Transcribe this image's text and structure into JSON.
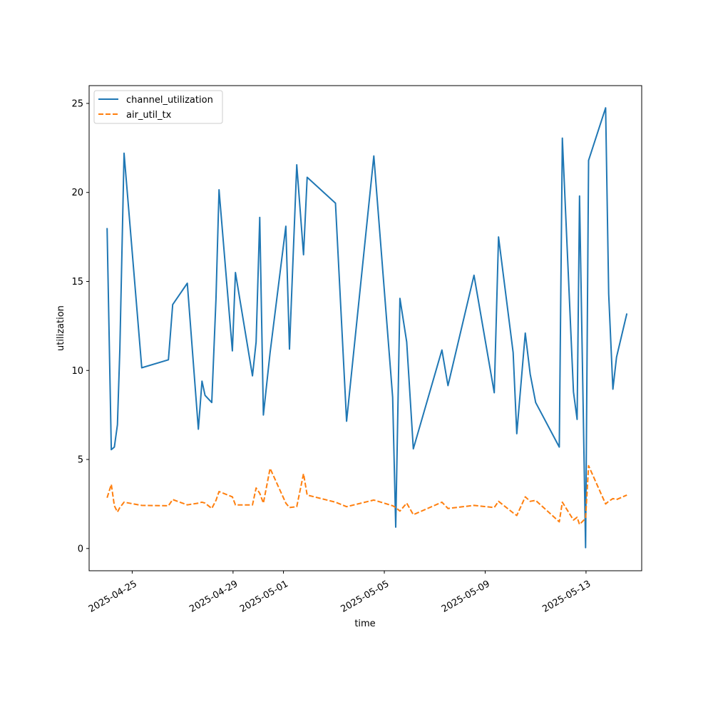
{
  "chart_data": {
    "type": "line",
    "xlabel": "time",
    "ylabel": "utilization",
    "x_type": "date",
    "xlim": [
      "2025-04-23T07:00",
      "2025-05-15T05:00"
    ],
    "ylim": [
      -1.25,
      26.0
    ],
    "yticks": [
      0,
      5,
      10,
      15,
      20,
      25
    ],
    "xticks": [
      "2025-04-25",
      "2025-04-29",
      "2025-05-01",
      "2025-05-05",
      "2025-05-09",
      "2025-05-13"
    ],
    "grid": false,
    "legend": "upper left",
    "series": [
      {
        "name": "channel_utilization",
        "color": "#1f77b4",
        "dash": "solid",
        "points": [
          [
            "2025-04-24T00:05",
            18.0
          ],
          [
            "2025-04-24T04:08",
            5.55
          ],
          [
            "2025-04-24T07:01",
            5.7
          ],
          [
            "2025-04-24T09:55",
            6.95
          ],
          [
            "2025-04-24T12:14",
            11.2
          ],
          [
            "2025-04-24T16:17",
            22.2
          ],
          [
            "2025-04-25T09:07",
            10.15
          ],
          [
            "2025-04-26T10:28",
            10.6
          ],
          [
            "2025-04-26T14:31",
            13.7
          ],
          [
            "2025-04-27T04:26",
            14.9
          ],
          [
            "2025-04-27T15:00",
            6.7
          ],
          [
            "2025-04-27T18:28",
            9.4
          ],
          [
            "2025-04-27T21:21",
            8.6
          ],
          [
            "2025-04-28T03:43",
            8.2
          ],
          [
            "2025-04-28T07:46",
            14.0
          ],
          [
            "2025-04-28T10:40",
            20.15
          ],
          [
            "2025-04-28T23:23",
            11.1
          ],
          [
            "2025-04-29T02:16",
            15.5
          ],
          [
            "2025-04-29T18:28",
            9.7
          ],
          [
            "2025-04-29T21:57",
            11.6
          ],
          [
            "2025-04-30T01:24",
            18.6
          ],
          [
            "2025-04-30T04:52",
            7.5
          ],
          [
            "2025-04-30T11:14",
            11.0
          ],
          [
            "2025-05-01T02:17",
            18.1
          ],
          [
            "2025-05-01T05:45",
            11.2
          ],
          [
            "2025-05-01T12:40",
            21.55
          ],
          [
            "2025-05-01T19:04",
            16.5
          ],
          [
            "2025-05-01T22:33",
            20.85
          ],
          [
            "2025-05-03T01:30",
            19.4
          ],
          [
            "2025-05-03T12:04",
            7.15
          ],
          [
            "2025-05-04T14:02",
            22.05
          ],
          [
            "2025-05-05T07:56",
            8.5
          ],
          [
            "2025-05-05T10:50",
            1.2
          ],
          [
            "2025-05-05T14:52",
            14.05
          ],
          [
            "2025-05-05T21:16",
            11.6
          ],
          [
            "2025-05-06T03:37",
            5.6
          ],
          [
            "2025-05-07T06:48",
            11.15
          ],
          [
            "2025-05-07T12:34",
            9.15
          ],
          [
            "2025-05-08T13:22",
            15.35
          ],
          [
            "2025-05-09T08:40",
            8.75
          ],
          [
            "2025-05-09T12:43",
            17.5
          ],
          [
            "2025-05-10T02:38",
            11.0
          ],
          [
            "2025-05-10T06:05",
            6.45
          ],
          [
            "2025-05-10T14:12",
            12.1
          ],
          [
            "2025-05-10T18:52",
            9.8
          ],
          [
            "2025-05-11T00:05",
            8.2
          ],
          [
            "2025-05-11T22:34",
            5.7
          ],
          [
            "2025-05-12T01:27",
            23.05
          ],
          [
            "2025-05-12T12:02",
            8.8
          ],
          [
            "2025-05-12T15:30",
            7.25
          ],
          [
            "2025-05-12T17:48",
            19.8
          ],
          [
            "2025-05-12T23:36",
            0.05
          ],
          [
            "2025-05-13T02:25",
            21.8
          ],
          [
            "2025-05-13T18:40",
            24.75
          ],
          [
            "2025-05-13T21:33",
            14.3
          ],
          [
            "2025-05-14T01:36",
            8.95
          ],
          [
            "2025-05-14T05:02",
            10.75
          ],
          [
            "2025-05-14T14:52",
            13.2
          ]
        ]
      },
      {
        "name": "air_util_tx",
        "color": "#ff7f0e",
        "dash": "dashed",
        "points": [
          [
            "2025-04-24T00:05",
            2.85
          ],
          [
            "2025-04-24T04:08",
            3.6
          ],
          [
            "2025-04-24T07:01",
            2.4
          ],
          [
            "2025-04-24T09:55",
            2.05
          ],
          [
            "2025-04-24T12:14",
            2.3
          ],
          [
            "2025-04-24T16:17",
            2.6
          ],
          [
            "2025-04-25T09:07",
            2.42
          ],
          [
            "2025-04-26T10:28",
            2.4
          ],
          [
            "2025-04-26T14:31",
            2.75
          ],
          [
            "2025-04-27T04:26",
            2.45
          ],
          [
            "2025-04-27T15:00",
            2.55
          ],
          [
            "2025-04-27T18:28",
            2.6
          ],
          [
            "2025-04-27T21:21",
            2.55
          ],
          [
            "2025-04-28T03:43",
            2.25
          ],
          [
            "2025-04-28T07:46",
            2.7
          ],
          [
            "2025-04-28T10:40",
            3.2
          ],
          [
            "2025-04-28T23:23",
            2.9
          ],
          [
            "2025-04-29T02:16",
            2.45
          ],
          [
            "2025-04-29T18:28",
            2.45
          ],
          [
            "2025-04-29T21:57",
            3.4
          ],
          [
            "2025-04-30T01:24",
            3.1
          ],
          [
            "2025-04-30T04:52",
            2.55
          ],
          [
            "2025-04-30T11:14",
            4.5
          ],
          [
            "2025-05-01T02:17",
            2.55
          ],
          [
            "2025-05-01T05:45",
            2.3
          ],
          [
            "2025-05-01T12:40",
            2.35
          ],
          [
            "2025-05-01T19:04",
            4.2
          ],
          [
            "2025-05-01T22:33",
            3.0
          ],
          [
            "2025-05-03T01:30",
            2.6
          ],
          [
            "2025-05-03T12:04",
            2.35
          ],
          [
            "2025-05-04T14:02",
            2.72
          ],
          [
            "2025-05-05T07:56",
            2.4
          ],
          [
            "2025-05-05T10:50",
            2.3
          ],
          [
            "2025-05-05T14:52",
            2.1
          ],
          [
            "2025-05-05T21:16",
            2.55
          ],
          [
            "2025-05-06T03:37",
            1.9
          ],
          [
            "2025-05-07T06:48",
            2.6
          ],
          [
            "2025-05-07T12:34",
            2.25
          ],
          [
            "2025-05-08T13:22",
            2.42
          ],
          [
            "2025-05-09T08:40",
            2.3
          ],
          [
            "2025-05-09T12:43",
            2.65
          ],
          [
            "2025-05-10T02:38",
            2.0
          ],
          [
            "2025-05-10T06:05",
            1.85
          ],
          [
            "2025-05-10T14:12",
            2.9
          ],
          [
            "2025-05-10T18:52",
            2.65
          ],
          [
            "2025-05-11T00:05",
            2.7
          ],
          [
            "2025-05-11T22:34",
            1.5
          ],
          [
            "2025-05-12T01:27",
            2.6
          ],
          [
            "2025-05-12T12:02",
            1.6
          ],
          [
            "2025-05-12T15:30",
            1.75
          ],
          [
            "2025-05-12T17:48",
            1.35
          ],
          [
            "2025-05-12T23:36",
            1.7
          ],
          [
            "2025-05-13T02:25",
            4.65
          ],
          [
            "2025-05-13T18:40",
            2.5
          ],
          [
            "2025-05-13T21:33",
            2.65
          ],
          [
            "2025-05-14T01:36",
            2.8
          ],
          [
            "2025-05-14T05:02",
            2.75
          ],
          [
            "2025-05-14T14:52",
            3.0
          ]
        ]
      }
    ]
  }
}
